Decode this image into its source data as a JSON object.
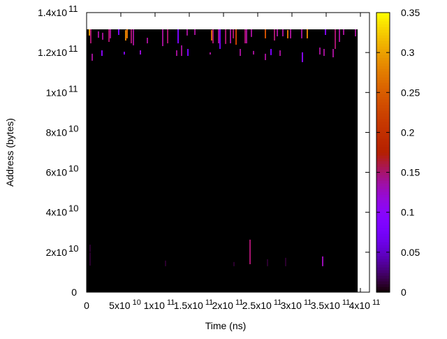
{
  "chart_data": {
    "type": "heatmap",
    "xlabel": "Time (ns)",
    "ylabel": "Address (bytes)",
    "xlim": [
      0,
      400000000000
    ],
    "ylim": [
      0,
      140000000000
    ],
    "x_ticks": [
      {
        "value": 0,
        "mant": "0",
        "exp": ""
      },
      {
        "value": 50000000000,
        "mant": "5x10",
        "exp": "10"
      },
      {
        "value": 100000000000,
        "mant": "1x10",
        "exp": "11"
      },
      {
        "value": 150000000000,
        "mant": "1.5x10",
        "exp": "11"
      },
      {
        "value": 200000000000,
        "mant": "2x10",
        "exp": "11"
      },
      {
        "value": 250000000000,
        "mant": "2.5x10",
        "exp": "11"
      },
      {
        "value": 300000000000,
        "mant": "3x10",
        "exp": "11"
      },
      {
        "value": 350000000000,
        "mant": "3.5x10",
        "exp": "11"
      },
      {
        "value": 400000000000,
        "mant": "4x10",
        "exp": "11"
      }
    ],
    "y_ticks": [
      {
        "value": 0,
        "mant": "0",
        "exp": ""
      },
      {
        "value": 20000000000,
        "mant": "2x10",
        "exp": "10"
      },
      {
        "value": 40000000000,
        "mant": "4x10",
        "exp": "10"
      },
      {
        "value": 60000000000,
        "mant": "6x10",
        "exp": "10"
      },
      {
        "value": 80000000000,
        "mant": "8x10",
        "exp": "10"
      },
      {
        "value": 100000000000,
        "mant": "1x10",
        "exp": "11"
      },
      {
        "value": 120000000000,
        "mant": "1.2x10",
        "exp": "11"
      },
      {
        "value": 140000000000,
        "mant": "1.4x10",
        "exp": "11"
      }
    ],
    "colorbar": {
      "range": [
        0,
        0.35
      ],
      "ticks": [
        "0",
        "0.05",
        "0.1",
        "0.15",
        "0.2",
        "0.25",
        "0.3",
        "0.35"
      ],
      "palette": "black-purple-red-orange-yellow"
    },
    "grid": false,
    "data_extent": {
      "time_max": 396000000000,
      "address_max": 131600000000,
      "background_value": 0
    },
    "cell_width_ns": 2000000000,
    "streaks_columns": [
      "time_ns",
      "address_low",
      "address_high",
      "value"
    ],
    "streaks": [
      [
        4100000000.0,
        128500000000.0,
        131600000000.0,
        0.3
      ],
      [
        6100000000.0,
        124600000000.0,
        131600000000.0,
        0.15
      ],
      [
        17300000000.0,
        127400000000.0,
        130600000000.0,
        0.14
      ],
      [
        23500000000.0,
        126400000000.0,
        129900000000.0,
        0.14
      ],
      [
        32700000000.0,
        125300000000.0,
        131600000000.0,
        0.15
      ],
      [
        34700000000.0,
        127100000000.0,
        131600000000.0,
        0.14
      ],
      [
        46900000000.0,
        128800000000.0,
        131600000000.0,
        0.08
      ],
      [
        57100000000.0,
        126000000000.0,
        131300000000.0,
        0.28
      ],
      [
        59200000000.0,
        127100000000.0,
        131600000000.0,
        0.27
      ],
      [
        65300000000.0,
        124600000000.0,
        131600000000.0,
        0.15
      ],
      [
        68400000000.0,
        123600000000.0,
        131600000000.0,
        0.14
      ],
      [
        111200000000.0,
        123200000000.0,
        131600000000.0,
        0.14
      ],
      [
        118400000000.0,
        124600000000.0,
        131600000000.0,
        0.15
      ],
      [
        133700000000.0,
        124600000000.0,
        131600000000.0,
        0.08
      ],
      [
        146900000000.0,
        128500000000.0,
        131600000000.0,
        0.14
      ],
      [
        158200000000.0,
        128800000000.0,
        131600000000.0,
        0.14
      ],
      [
        182700000000.0,
        126000000000.0,
        131300000000.0,
        0.26
      ],
      [
        184700000000.0,
        124600000000.0,
        131600000000.0,
        0.15
      ],
      [
        192900000000.0,
        124600000000.0,
        131600000000.0,
        0.14
      ],
      [
        194900000000.0,
        121800000000.0,
        131600000000.0,
        0.07
      ],
      [
        203100000000.0,
        124300000000.0,
        131600000000.0,
        0.15
      ],
      [
        210200000000.0,
        124600000000.0,
        131600000000.0,
        0.14
      ],
      [
        214300000000.0,
        127100000000.0,
        131600000000.0,
        0.15
      ],
      [
        218400000000.0,
        123900000000.0,
        131600000000.0,
        0.22
      ],
      [
        231600000000.0,
        124600000000.0,
        131600000000.0,
        0.15
      ],
      [
        233700000000.0,
        124600000000.0,
        131600000000.0,
        0.14
      ],
      [
        240800000000.0,
        127800000000.0,
        131600000000.0,
        0.14
      ],
      [
        261200000000.0,
        127100000000.0,
        131600000000.0,
        0.24
      ],
      [
        274500000000.0,
        126000000000.0,
        131600000000.0,
        0.15
      ],
      [
        278600000000.0,
        128100000000.0,
        131600000000.0,
        0.14
      ],
      [
        286700000000.0,
        128100000000.0,
        131600000000.0,
        0.14
      ],
      [
        293900000000.0,
        127100000000.0,
        131300000000.0,
        0.27
      ],
      [
        298000000000.0,
        127100000000.0,
        131600000000.0,
        0.14
      ],
      [
        314300000000.0,
        127100000000.0,
        131600000000.0,
        0.14
      ],
      [
        322400000000.0,
        127100000000.0,
        131600000000.0,
        0.28
      ],
      [
        349000000000.0,
        128800000000.0,
        131600000000.0,
        0.09
      ],
      [
        363300000000.0,
        121800000000.0,
        131600000000.0,
        0.15
      ],
      [
        369400000000.0,
        125300000000.0,
        131600000000.0,
        0.14
      ],
      [
        375500000000.0,
        128800000000.0,
        131600000000.0,
        0.14
      ],
      [
        392900000000.0,
        128100000000.0,
        131600000000.0,
        0.14
      ],
      [
        8200000000.0,
        115900000000.0,
        119400000000.0,
        0.14
      ],
      [
        22400000000.0,
        118300000000.0,
        121100000000.0,
        0.1
      ],
      [
        55100000000.0,
        119000000000.0,
        120400000000.0,
        0.09
      ],
      [
        78600000000.0,
        119000000000.0,
        121100000000.0,
        0.12
      ],
      [
        88800000000.0,
        124600000000.0,
        127400000000.0,
        0.14
      ],
      [
        131600000000.0,
        118300000000.0,
        121100000000.0,
        0.14
      ],
      [
        138800000000.0,
        118300000000.0,
        123600000000.0,
        0.14
      ],
      [
        148000000000.0,
        118300000000.0,
        121800000000.0,
        0.08
      ],
      [
        180600000000.0,
        119000000000.0,
        120100000000.0,
        0.14
      ],
      [
        224500000000.0,
        118300000000.0,
        121800000000.0,
        0.14
      ],
      [
        243900000000.0,
        119000000000.0,
        120800000000.0,
        0.14
      ],
      [
        261200000000.0,
        116200000000.0,
        119400000000.0,
        0.14
      ],
      [
        269400000000.0,
        118700000000.0,
        121800000000.0,
        0.08
      ],
      [
        282700000000.0,
        118300000000.0,
        121100000000.0,
        0.14
      ],
      [
        315300000000.0,
        115200000000.0,
        120100000000.0,
        0.1
      ],
      [
        340800000000.0,
        119000000000.0,
        122500000000.0,
        0.14
      ],
      [
        346900000000.0,
        118300000000.0,
        121800000000.0,
        0.14
      ],
      [
        360200000000.0,
        117600000000.0,
        121800000000.0,
        0.14
      ],
      [
        5100000000.0,
        13300000000.0,
        23800000000.0,
        0.01
      ],
      [
        115300000000.0,
        13000000000.0,
        15800000000.0,
        0.01
      ],
      [
        215300000000.0,
        13000000000.0,
        15100000000.0,
        0.01
      ],
      [
        238800000000.0,
        14000000000.0,
        26300000000.0,
        0.15
      ],
      [
        264300000000.0,
        13000000000.0,
        16500000000.0,
        0.01
      ],
      [
        290800000000.0,
        13000000000.0,
        17200000000.0,
        0.01
      ],
      [
        344900000000.0,
        13000000000.0,
        17900000000.0,
        0.13
      ]
    ]
  }
}
